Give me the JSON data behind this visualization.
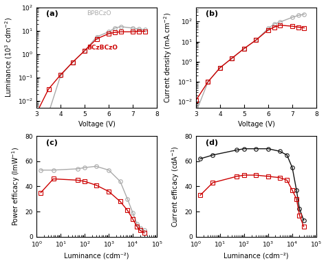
{
  "panel_a": {
    "label": "(a)",
    "xlabel": "Voltage (V)",
    "ylabel": "Luminance (10$^3$ cdm$^{-2}$)",
    "ylabel_plain": "Luminance (10³ cdm⁻²)",
    "xlim": [
      3,
      8
    ],
    "gray_label": "BPBCzO",
    "red_label": "BCzBCzO",
    "gray_x": [
      3.0,
      3.5,
      4.0,
      4.5,
      5.0,
      5.5,
      6.0,
      6.25,
      6.5,
      7.0,
      7.25,
      7.5
    ],
    "gray_y": [
      0.003,
      0.003,
      0.12,
      0.45,
      1.4,
      5.5,
      9,
      13,
      15,
      13,
      12,
      11
    ],
    "red_x": [
      3.0,
      3.5,
      4.0,
      4.5,
      5.0,
      5.5,
      6.0,
      6.25,
      6.5,
      7.0,
      7.25,
      7.5
    ],
    "red_y": [
      0.003,
      0.032,
      0.13,
      0.45,
      1.4,
      4.5,
      7.5,
      8.5,
      9.0,
      9.0,
      9.5,
      9.5
    ]
  },
  "panel_b": {
    "label": "(b)",
    "xlabel": "Voltage (V)",
    "ylabel": "Current density (mA.cm⁻²)",
    "xlim": [
      3,
      8
    ],
    "gray_x": [
      3.0,
      3.5,
      4.0,
      4.5,
      5.0,
      5.5,
      6.0,
      6.25,
      6.5,
      7.0,
      7.25,
      7.5
    ],
    "gray_y": [
      0.003,
      0.1,
      0.5,
      1.5,
      4.5,
      12,
      45,
      75,
      95,
      160,
      200,
      230
    ],
    "red_x": [
      3.0,
      3.5,
      4.0,
      4.5,
      5.0,
      5.5,
      6.0,
      6.25,
      6.5,
      7.0,
      7.25,
      7.5
    ],
    "red_y": [
      0.012,
      0.1,
      0.5,
      1.5,
      4.5,
      12,
      38,
      52,
      65,
      58,
      52,
      48
    ]
  },
  "panel_c": {
    "label": "(c)",
    "xlabel": "Luminance (cdm⁻²)",
    "ylabel": "Power efficacy (lmW⁻¹)",
    "ylim": [
      0,
      80
    ],
    "gray_x": [
      1.5,
      5,
      50,
      100,
      300,
      1000,
      3000,
      6000,
      10000,
      15000,
      20000,
      30000
    ],
    "gray_y": [
      53,
      53,
      54,
      55,
      56,
      53,
      44,
      30,
      19,
      10,
      7,
      5
    ],
    "red_x": [
      1.5,
      5,
      50,
      100,
      300,
      1000,
      3000,
      6000,
      10000,
      15000,
      20000,
      30000
    ],
    "red_y": [
      35,
      46,
      45,
      44,
      41,
      36,
      28,
      21,
      14,
      8,
      5,
      3
    ]
  },
  "panel_d": {
    "label": "(d)",
    "xlabel": "Luminance (cdm⁻²)",
    "ylabel": "Current efficacy (cdA⁻¹)",
    "ylim": [
      0,
      80
    ],
    "black_x": [
      1.5,
      5,
      50,
      100,
      300,
      1000,
      3000,
      6000,
      10000,
      15000,
      20000,
      30000
    ],
    "black_y": [
      62,
      65,
      69,
      70,
      70,
      70,
      68,
      65,
      55,
      37,
      22,
      13
    ],
    "red_x": [
      1.5,
      5,
      50,
      100,
      300,
      1000,
      3000,
      6000,
      10000,
      15000,
      20000,
      30000
    ],
    "red_y": [
      33,
      43,
      48,
      49,
      49,
      48,
      47,
      45,
      37,
      30,
      17,
      8
    ]
  },
  "gray_color": "#aaaaaa",
  "red_color": "#cc0000",
  "black_color": "#111111",
  "marker_gray": "o",
  "marker_red": "s",
  "linewidth": 1.0,
  "markersize": 4,
  "fontsize_label": 7,
  "fontsize_tick": 6.5,
  "fontsize_panel": 8,
  "fontsize_legend": 6.5
}
